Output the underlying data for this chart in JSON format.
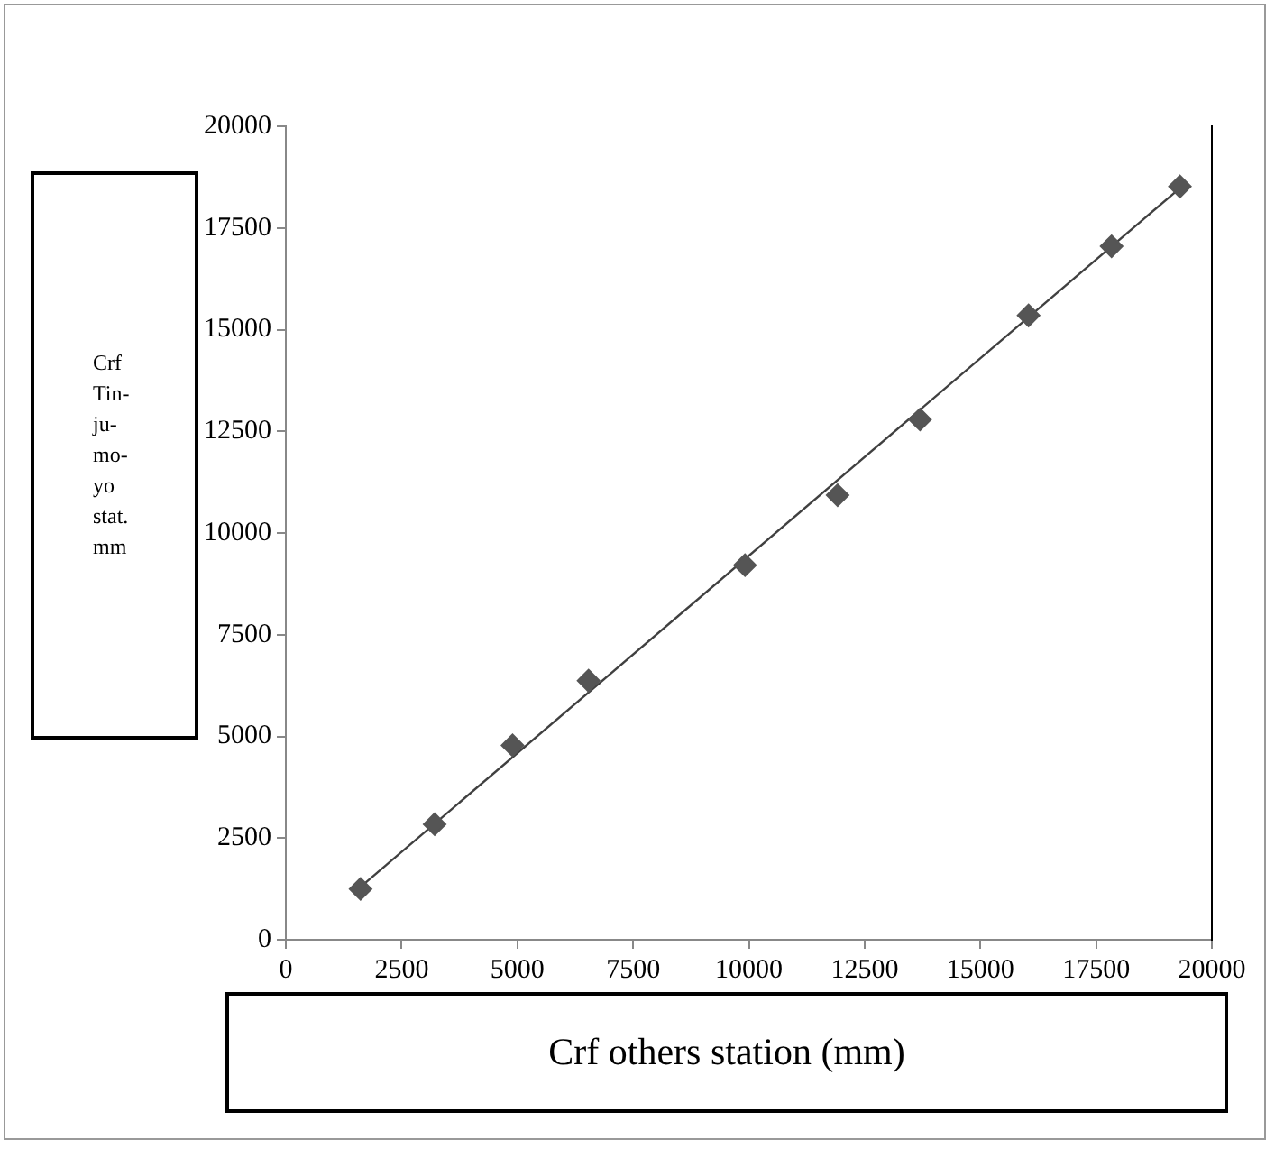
{
  "chart_data": {
    "type": "scatter",
    "xlabel": "Crf others station (mm)",
    "ylabel": "Crf Tin-ju-mo-yo stat. mm",
    "xlim": [
      0,
      20000
    ],
    "xticks": [
      0,
      2500,
      5000,
      7500,
      10000,
      12500,
      15000,
      17500,
      20000
    ],
    "ylim": [
      0,
      20000
    ],
    "yticks": [
      0,
      2500,
      5000,
      7500,
      10000,
      12500,
      15000,
      17500,
      20000
    ],
    "grid": false,
    "legend": false,
    "marker": "diamond",
    "series": [
      {
        "type": "scatter",
        "color": "#555555",
        "x": [
          1614,
          3214,
          4897,
          6538,
          9917,
          11917,
          13697,
          16041,
          17834,
          19310
        ],
        "values": [
          1250,
          2840,
          4780,
          6370,
          9210,
          10930,
          12790,
          15350,
          17050,
          18520
        ]
      },
      {
        "type": "line",
        "color": "#404040",
        "marker": "none",
        "x": [
          1614,
          19310
        ],
        "values": [
          1300,
          18480
        ]
      }
    ]
  }
}
